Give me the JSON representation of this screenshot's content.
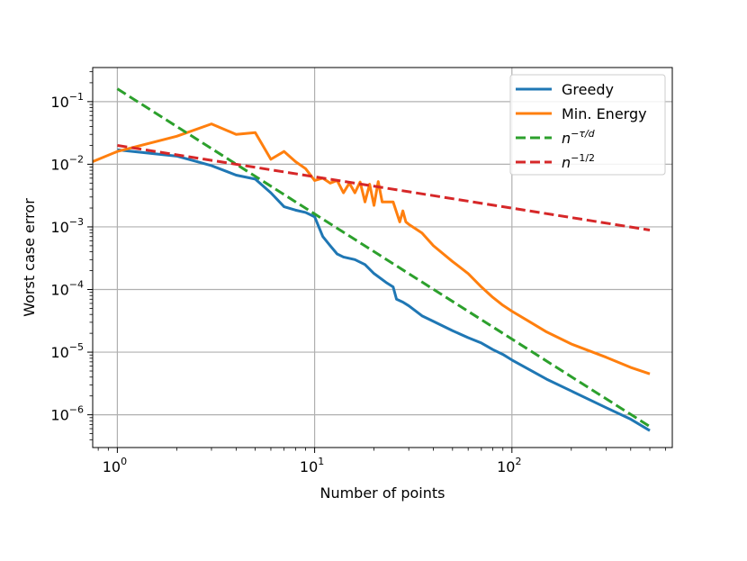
{
  "chart_data": {
    "type": "line",
    "scale": {
      "x": "log",
      "y": "log"
    },
    "xlabel": "Number of points",
    "ylabel": "Worst case error",
    "xlim": [
      0.75,
      650
    ],
    "ylim": [
      3e-07,
      0.35
    ],
    "grid": true,
    "legend_position": "top-right",
    "x_ticks": [
      {
        "value": 1,
        "base": "10",
        "exp": "0"
      },
      {
        "value": 10,
        "base": "10",
        "exp": "1"
      },
      {
        "value": 100,
        "base": "10",
        "exp": "2"
      }
    ],
    "y_ticks": [
      {
        "value": 0.1,
        "base": "10",
        "exp": "−1"
      },
      {
        "value": 0.01,
        "base": "10",
        "exp": "−2"
      },
      {
        "value": 0.001,
        "base": "10",
        "exp": "−3"
      },
      {
        "value": 0.0001,
        "base": "10",
        "exp": "−4"
      },
      {
        "value": 1e-05,
        "base": "10",
        "exp": "−5"
      },
      {
        "value": 1e-06,
        "base": "10",
        "exp": "−6"
      }
    ],
    "series": [
      {
        "name": "Greedy",
        "color": "#1f77b4",
        "style": "solid",
        "x": [
          1,
          2,
          3,
          4,
          5,
          6,
          7,
          8,
          9,
          10,
          11,
          12,
          13,
          14,
          16,
          18,
          20,
          23,
          25,
          26,
          28,
          30,
          35,
          40,
          50,
          60,
          70,
          80,
          90,
          100,
          150,
          200,
          300,
          400,
          500
        ],
        "y": [
          0.017,
          0.0135,
          0.0095,
          0.0067,
          0.0058,
          0.0035,
          0.0021,
          0.00185,
          0.0017,
          0.00145,
          0.0007,
          0.0005,
          0.00037,
          0.00033,
          0.0003,
          0.00025,
          0.00018,
          0.00013,
          0.00011,
          7e-05,
          6.3e-05,
          5.5e-05,
          3.8e-05,
          3.1e-05,
          2.2e-05,
          1.7e-05,
          1.4e-05,
          1.1e-05,
          9.2e-06,
          7.5e-06,
          3.7e-06,
          2.4e-06,
          1.3e-06,
          8.5e-07,
          5.6e-07
        ]
      },
      {
        "name": "Min. Energy",
        "color": "#ff7f0e",
        "style": "solid",
        "x": [
          0.75,
          1,
          2,
          3,
          4,
          5,
          6,
          7,
          8,
          9,
          10,
          11,
          12,
          13,
          14,
          15,
          16,
          17,
          18,
          19,
          20,
          21,
          22,
          25,
          27,
          28,
          29,
          30,
          35,
          40,
          50,
          60,
          70,
          80,
          90,
          100,
          120,
          150,
          200,
          300,
          400,
          500
        ],
        "y": [
          0.011,
          0.016,
          0.028,
          0.044,
          0.03,
          0.032,
          0.012,
          0.016,
          0.011,
          0.0085,
          0.0055,
          0.006,
          0.005,
          0.0055,
          0.0035,
          0.005,
          0.0035,
          0.0052,
          0.0025,
          0.0048,
          0.0022,
          0.0053,
          0.0025,
          0.0025,
          0.0012,
          0.0018,
          0.0012,
          0.0011,
          0.0008,
          0.0005,
          0.00028,
          0.00018,
          0.00011,
          7.5e-05,
          5.6e-05,
          4.5e-05,
          3.2e-05,
          2.1e-05,
          1.35e-05,
          8.3e-06,
          5.7e-06,
          4.5e-06
        ]
      },
      {
        "name": "n^(−τ/d)",
        "color": "#2ca02c",
        "style": "dashed",
        "x": [
          1,
          500
        ],
        "y": [
          0.16,
          6.5e-07
        ]
      },
      {
        "name": "n^(−1/2)",
        "color": "#d62728",
        "style": "dashed",
        "x": [
          1,
          500
        ],
        "y": [
          0.02,
          0.00089
        ]
      }
    ],
    "legend": [
      {
        "label": "Greedy",
        "base": "",
        "exp": ""
      },
      {
        "label": "Min. Energy",
        "base": "",
        "exp": ""
      },
      {
        "label": "",
        "base": "n",
        "exp": "−τ/d"
      },
      {
        "label": "",
        "base": "n",
        "exp": "−1/2"
      }
    ]
  }
}
